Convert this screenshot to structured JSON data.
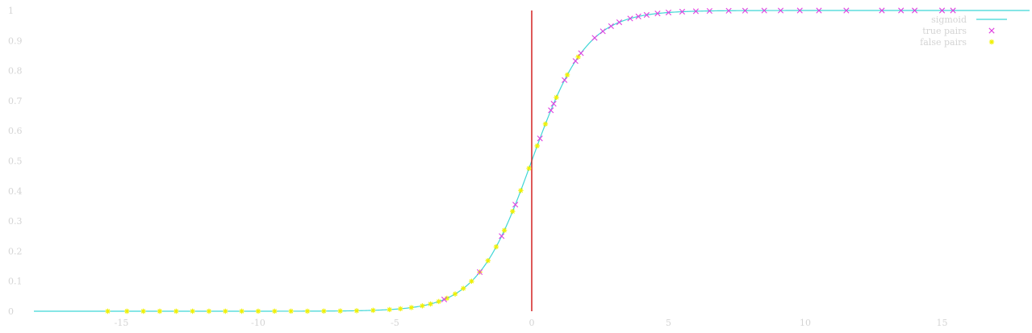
{
  "chart_data": {
    "type": "scatter",
    "title": "",
    "xlabel": "",
    "ylabel": "",
    "xlim": [
      -18.2,
      18.2
    ],
    "ylim": [
      0,
      1
    ],
    "grid": false,
    "legend_position": "top-right",
    "x_ticks": [
      "-15",
      "-10",
      "-5",
      "0",
      "5",
      "10",
      "15"
    ],
    "y_ticks": [
      "0",
      "0.1",
      "0.2",
      "0.3",
      "0.4",
      "0.5",
      "0.6",
      "0.7",
      "0.8",
      "0.9",
      "1"
    ],
    "vertical_line_x": 0,
    "colors": {
      "sigmoid": "#3fd6d6",
      "true_pairs": "#e040e0",
      "false_pairs": "#f0f000",
      "vline": "#cc0000",
      "text": "#d4d4d4"
    },
    "series": [
      {
        "name": "sigmoid",
        "kind": "function",
        "function": "sigmoid",
        "x_range": [
          -18.2,
          18.2
        ]
      },
      {
        "name": "true pairs",
        "kind": "points",
        "marker": "x",
        "x": [
          -3.2,
          -1.9,
          -1.1,
          -0.6,
          0.3,
          0.7,
          0.8,
          1.2,
          1.6,
          1.8,
          2.3,
          2.6,
          2.9,
          3.2,
          3.6,
          3.9,
          4.2,
          4.6,
          5.0,
          5.5,
          6.0,
          6.5,
          7.2,
          7.8,
          8.5,
          9.1,
          9.8,
          10.5,
          11.5,
          12.8,
          13.5,
          14.0,
          15.0,
          15.4
        ]
      },
      {
        "name": "false pairs",
        "kind": "points",
        "marker": "star",
        "x": [
          -15.5,
          -14.8,
          -14.2,
          -13.6,
          -13.0,
          -12.4,
          -11.8,
          -11.2,
          -10.6,
          -10.0,
          -9.4,
          -8.8,
          -8.2,
          -7.6,
          -7.0,
          -6.4,
          -5.8,
          -5.2,
          -4.8,
          -4.4,
          -4.0,
          -3.7,
          -3.4,
          -3.1,
          -2.8,
          -2.5,
          -2.2,
          -1.9,
          -1.6,
          -1.3,
          -1.0,
          -0.7,
          -0.4,
          -0.1,
          0.2,
          0.5,
          0.9,
          1.3,
          1.7
        ]
      }
    ]
  }
}
